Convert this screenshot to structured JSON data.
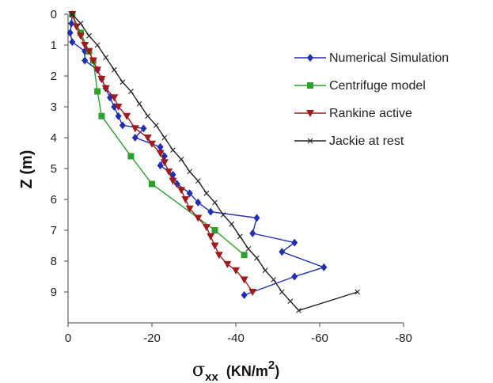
{
  "chart_data": {
    "type": "line",
    "ylabel": "Z (m)",
    "xlabel": {
      "symbol": "σ",
      "subscript": "xx",
      "unit": "(KN/m",
      "unit_sup": "2",
      "unit_close": ")"
    },
    "xlim": [
      0,
      -80
    ],
    "ylim": [
      0,
      10
    ],
    "y_inverted": true,
    "x_ticks": [
      "0",
      "-20",
      "-40",
      "-60",
      "-80"
    ],
    "x_tick_values": [
      0,
      -20,
      -40,
      -60,
      -80
    ],
    "y_ticks": [
      "0",
      "1",
      "2",
      "3",
      "4",
      "5",
      "6",
      "7",
      "8",
      "9"
    ],
    "y_tick_values": [
      0,
      1,
      2,
      3,
      4,
      5,
      6,
      7,
      8,
      9
    ],
    "grid": false,
    "legend_position": "upper-right",
    "series": [
      {
        "name": "Numerical Simulation",
        "color": "#1f2fb0",
        "marker": "diamond",
        "points": [
          [
            -1,
            0
          ],
          [
            -0.8,
            0.3
          ],
          [
            -0.5,
            0.6
          ],
          [
            -1,
            0.9
          ],
          [
            -4,
            1.2
          ],
          [
            -4,
            1.5
          ],
          [
            -7,
            1.8
          ],
          [
            -8,
            2.1
          ],
          [
            -9,
            2.4
          ],
          [
            -10,
            2.7
          ],
          [
            -11,
            3.0
          ],
          [
            -12,
            3.3
          ],
          [
            -13,
            3.6
          ],
          [
            -18,
            3.7
          ],
          [
            -16,
            4.0
          ],
          [
            -22,
            4.3
          ],
          [
            -23,
            4.6
          ],
          [
            -22,
            4.9
          ],
          [
            -25,
            5.2
          ],
          [
            -26,
            5.5
          ],
          [
            -29,
            5.8
          ],
          [
            -31,
            6.1
          ],
          [
            -34,
            6.4
          ],
          [
            -45,
            6.6
          ],
          [
            -44,
            7.1
          ],
          [
            -54,
            7.4
          ],
          [
            -51,
            7.7
          ],
          [
            -61,
            8.2
          ],
          [
            -54,
            8.5
          ],
          [
            -42,
            9.1
          ]
        ]
      },
      {
        "name": "Centrifuge model",
        "color": "#2ca02c",
        "marker": "square",
        "points": [
          [
            -1,
            0
          ],
          [
            -3,
            0.6
          ],
          [
            -5,
            1.2
          ],
          [
            -6,
            1.5
          ],
          [
            -7,
            2.5
          ],
          [
            -8,
            3.3
          ],
          [
            -15,
            4.6
          ],
          [
            -20,
            5.5
          ],
          [
            -35,
            7.0
          ],
          [
            -42,
            7.8
          ]
        ]
      },
      {
        "name": "Rankine active",
        "color": "#a01c1c",
        "marker": "triangle-down",
        "points": [
          [
            -1,
            0
          ],
          [
            -2,
            0.4
          ],
          [
            -3,
            0.7
          ],
          [
            -4,
            1.0
          ],
          [
            -5,
            1.2
          ],
          [
            -6,
            1.5
          ],
          [
            -7,
            1.8
          ],
          [
            -8,
            2.1
          ],
          [
            -9,
            2.4
          ],
          [
            -11,
            2.7
          ],
          [
            -12,
            3.0
          ],
          [
            -14,
            3.3
          ],
          [
            -16,
            3.7
          ],
          [
            -19,
            4.0
          ],
          [
            -20,
            4.2
          ],
          [
            -22,
            4.5
          ],
          [
            -23,
            4.8
          ],
          [
            -24,
            5.1
          ],
          [
            -25,
            5.4
          ],
          [
            -27,
            5.7
          ],
          [
            -28,
            6.0
          ],
          [
            -29,
            6.3
          ],
          [
            -31,
            6.6
          ],
          [
            -33,
            6.9
          ],
          [
            -34,
            7.2
          ],
          [
            -35,
            7.5
          ],
          [
            -36,
            7.8
          ],
          [
            -38,
            8.1
          ],
          [
            -40,
            8.3
          ],
          [
            -42,
            8.6
          ],
          [
            -44,
            9.0
          ]
        ]
      },
      {
        "name": "Jackie at rest",
        "color": "#222222",
        "marker": "x",
        "points": [
          [
            -1,
            0
          ],
          [
            -3,
            0.3
          ],
          [
            -5,
            0.7
          ],
          [
            -7,
            1.0
          ],
          [
            -9,
            1.4
          ],
          [
            -11,
            1.8
          ],
          [
            -13,
            2.2
          ],
          [
            -15,
            2.5
          ],
          [
            -17,
            2.9
          ],
          [
            -19,
            3.3
          ],
          [
            -21,
            3.6
          ],
          [
            -23,
            4.0
          ],
          [
            -25,
            4.4
          ],
          [
            -27,
            4.7
          ],
          [
            -29,
            5.1
          ],
          [
            -31,
            5.4
          ],
          [
            -33,
            5.8
          ],
          [
            -35,
            6.1
          ],
          [
            -37,
            6.5
          ],
          [
            -39,
            6.8
          ],
          [
            -41,
            7.2
          ],
          [
            -43,
            7.6
          ],
          [
            -45,
            7.9
          ],
          [
            -47,
            8.3
          ],
          [
            -49,
            8.6
          ],
          [
            -51,
            9.0
          ],
          [
            -53,
            9.3
          ],
          [
            -55,
            9.6
          ],
          [
            -69,
            9.0
          ]
        ]
      }
    ]
  }
}
